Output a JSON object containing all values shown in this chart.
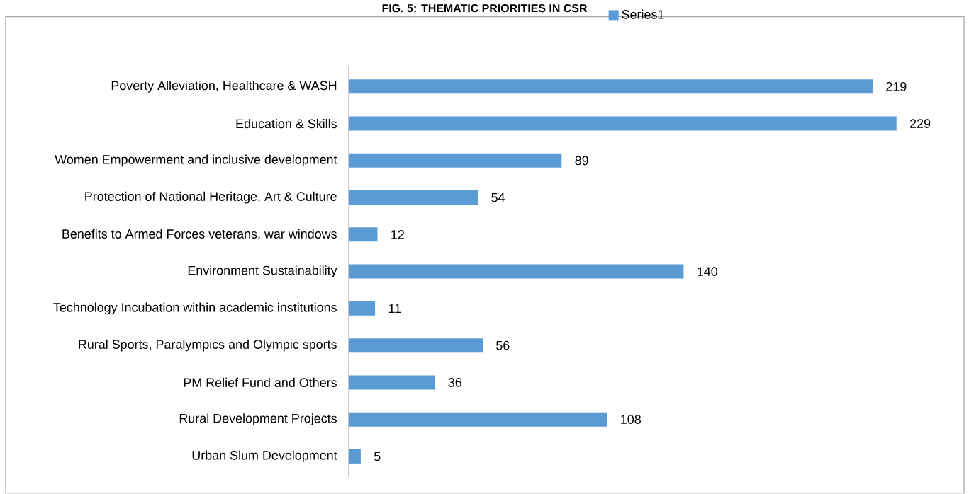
{
  "chart_data": {
    "type": "bar",
    "orientation": "horizontal",
    "title": "FIG. 5: THEMATIC PRIORITIES IN CSR",
    "categories": [
      "Poverty Alleviation, Healthcare & WASH",
      "Education & Skills",
      "Women Empowerment and inclusive development",
      "Protection of National Heritage, Art & Culture",
      "Benefits to Armed Forces veterans, war windows",
      "Environment Sustainability",
      "Technology Incubation within academic institutions",
      "Rural Sports, Paralympics and Olympic sports",
      "PM Relief Fund and Others",
      "Rural Development Projects",
      "Urban Slum Development"
    ],
    "series": [
      {
        "name": "Series1",
        "color": "#5b9bd5",
        "values": [
          219,
          229,
          89,
          54,
          12,
          140,
          11,
          56,
          36,
          108,
          5
        ]
      }
    ],
    "data_labels": true,
    "legend": "top"
  }
}
